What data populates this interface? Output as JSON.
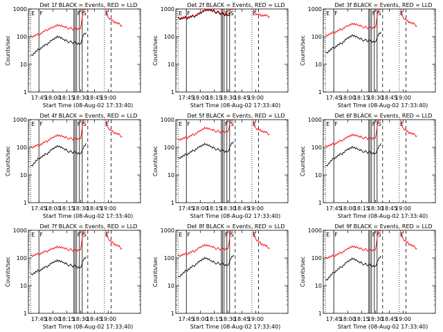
{
  "ylabel": "Counts/sec",
  "xlabel": "Start Time (08-Aug-02 17:33:40)",
  "time_ticks": [
    "17:45",
    "18:00",
    "18:15",
    "18:30",
    "18:45",
    "19:00"
  ],
  "y_ticks": [
    "1",
    "10",
    "100",
    "1000"
  ],
  "markers": [
    {
      "label": "E",
      "style": "dotted",
      "t": 17.6
    },
    {
      "label": "F",
      "style": "solid",
      "t": 17.75
    },
    {
      "label": "F",
      "style": "solid",
      "t": 18.43
    },
    {
      "label": "S",
      "style": "solid",
      "t": 18.53
    },
    {
      "label": "E",
      "style": "dotted",
      "t": 18.93
    }
  ],
  "colors": {
    "events": "#000000",
    "lld": "#ff0000",
    "axes": "#000000"
  },
  "chart_data": [
    {
      "type": "line",
      "title": "Det 1f BLACK = Events, RED = LLD",
      "xlim": [
        17.56,
        19.58
      ],
      "ylim": [
        1,
        1000
      ],
      "yscale": "log",
      "series": [
        {
          "name": "BLACK = Events",
          "x": [
            17.6,
            17.75,
            17.9,
            18.0,
            18.1,
            18.2,
            18.3,
            18.4,
            18.5,
            18.55,
            18.6
          ],
          "y": [
            20,
            35,
            55,
            80,
            100,
            75,
            65,
            60,
            55,
            120,
            140
          ]
        },
        {
          "name": "RED = LLD",
          "x": [
            17.6,
            17.75,
            17.9,
            18.0,
            18.1,
            18.2,
            18.3,
            18.4,
            18.5,
            18.55,
            18.6,
            18.95,
            19.0,
            19.1,
            19.25
          ],
          "y": [
            100,
            120,
            180,
            220,
            260,
            220,
            200,
            190,
            200,
            1000,
            1000,
            1000,
            500,
            350,
            250
          ]
        }
      ]
    },
    {
      "type": "line",
      "title": "Det 2f BLACK = Events, RED = LLD",
      "xlim": [
        17.56,
        19.58
      ],
      "ylim": [
        1,
        1000
      ],
      "yscale": "log",
      "series": [
        {
          "name": "BLACK = Events",
          "x": [
            17.6,
            17.75,
            17.9,
            18.0,
            18.1,
            18.2,
            18.3,
            18.4,
            18.5,
            18.55
          ],
          "y": [
            450,
            470,
            550,
            700,
            900,
            850,
            750,
            650,
            600,
            700
          ]
        },
        {
          "name": "RED = LLD",
          "x": [
            17.6,
            17.75,
            17.9,
            18.0,
            18.1,
            18.2,
            18.3,
            18.4,
            18.5,
            18.55,
            18.6,
            18.95,
            19.0,
            19.1,
            19.25
          ],
          "y": [
            480,
            500,
            580,
            750,
            950,
            900,
            800,
            700,
            650,
            1000,
            1000,
            1000,
            700,
            600,
            550
          ]
        }
      ]
    },
    {
      "type": "line",
      "title": "Det 3f BLACK = Events, RED = LLD",
      "xlim": [
        17.56,
        19.58
      ],
      "ylim": [
        1,
        1000
      ],
      "yscale": "log",
      "series": [
        {
          "name": "BLACK = Events",
          "x": [
            17.6,
            17.75,
            17.9,
            18.0,
            18.1,
            18.2,
            18.3,
            18.4,
            18.5,
            18.55,
            18.6
          ],
          "y": [
            25,
            40,
            60,
            90,
            110,
            85,
            75,
            70,
            65,
            120,
            150
          ]
        },
        {
          "name": "RED = LLD",
          "x": [
            17.6,
            17.75,
            17.9,
            18.0,
            18.1,
            18.2,
            18.3,
            18.4,
            18.5,
            18.55,
            18.6,
            18.95,
            19.0,
            19.1,
            19.25
          ],
          "y": [
            110,
            140,
            190,
            250,
            290,
            250,
            220,
            210,
            220,
            1000,
            1000,
            1000,
            500,
            350,
            250
          ]
        }
      ]
    },
    {
      "type": "line",
      "title": "Det 4f BLACK = Events, RED = LLD",
      "xlim": [
        17.56,
        19.58
      ],
      "ylim": [
        1,
        1000
      ],
      "yscale": "log",
      "series": [
        {
          "name": "BLACK = Events",
          "x": [
            17.6,
            17.75,
            17.9,
            18.0,
            18.1,
            18.2,
            18.3,
            18.4,
            18.5,
            18.55,
            18.6
          ],
          "y": [
            20,
            40,
            60,
            90,
            110,
            85,
            70,
            65,
            60,
            100,
            140
          ]
        },
        {
          "name": "RED = LLD",
          "x": [
            17.6,
            17.75,
            17.9,
            18.0,
            18.1,
            18.2,
            18.3,
            18.4,
            18.5,
            18.55,
            18.6,
            18.95,
            19.0,
            19.1,
            19.25
          ],
          "y": [
            100,
            120,
            170,
            230,
            270,
            230,
            210,
            200,
            210,
            1000,
            1000,
            1000,
            500,
            350,
            250
          ]
        }
      ]
    },
    {
      "type": "line",
      "title": "Det 5f BLACK = Events, RED = LLD",
      "xlim": [
        17.56,
        19.58
      ],
      "ylim": [
        1,
        1000
      ],
      "yscale": "log",
      "series": [
        {
          "name": "BLACK = Events",
          "x": [
            17.6,
            17.75,
            17.9,
            18.0,
            18.1,
            18.2,
            18.3,
            18.4,
            18.5,
            18.55,
            18.6
          ],
          "y": [
            40,
            55,
            80,
            110,
            130,
            100,
            85,
            75,
            70,
            130,
            160
          ]
        },
        {
          "name": "RED = LLD",
          "x": [
            17.6,
            17.75,
            17.9,
            18.0,
            18.1,
            18.2,
            18.3,
            18.4,
            18.5,
            18.55,
            18.6,
            18.95,
            19.0,
            19.1,
            19.25
          ],
          "y": [
            190,
            220,
            300,
            400,
            500,
            420,
            380,
            360,
            380,
            1000,
            1000,
            1000,
            500,
            400,
            300
          ]
        }
      ]
    },
    {
      "type": "line",
      "title": "Det 6f BLACK = Events, RED = LLD",
      "xlim": [
        17.56,
        19.58
      ],
      "ylim": [
        1,
        1000
      ],
      "yscale": "log",
      "series": [
        {
          "name": "BLACK = Events",
          "x": [
            17.6,
            17.75,
            17.9,
            18.0,
            18.1,
            18.2,
            18.3,
            18.4,
            18.5,
            18.55,
            18.6
          ],
          "y": [
            20,
            40,
            60,
            85,
            100,
            80,
            70,
            65,
            60,
            100,
            140
          ]
        },
        {
          "name": "RED = LLD",
          "x": [
            17.6,
            17.75,
            17.9,
            18.0,
            18.1,
            18.2,
            18.3,
            18.4,
            18.5,
            18.55,
            18.6,
            18.95,
            19.0,
            19.1,
            19.25
          ],
          "y": [
            110,
            130,
            180,
            240,
            280,
            240,
            220,
            210,
            220,
            1000,
            1000,
            1000,
            500,
            350,
            260
          ]
        }
      ]
    },
    {
      "type": "line",
      "title": "Det 7f BLACK = Events, RED = LLD",
      "xlim": [
        17.56,
        19.58
      ],
      "ylim": [
        1,
        1000
      ],
      "yscale": "log",
      "series": [
        {
          "name": "BLACK = Events",
          "x": [
            17.6,
            17.75,
            17.9,
            18.0,
            18.1,
            18.2,
            18.3,
            18.4,
            18.5,
            18.55,
            18.6
          ],
          "y": [
            25,
            35,
            50,
            70,
            80,
            65,
            55,
            50,
            45,
            90,
            110
          ]
        },
        {
          "name": "RED = LLD",
          "x": [
            17.6,
            17.75,
            17.9,
            18.0,
            18.1,
            18.2,
            18.3,
            18.4,
            18.5,
            18.55,
            18.6,
            18.95,
            19.0,
            19.1,
            19.25
          ],
          "y": [
            120,
            140,
            180,
            220,
            250,
            220,
            200,
            190,
            200,
            1000,
            1000,
            1000,
            500,
            330,
            220
          ]
        }
      ]
    },
    {
      "type": "line",
      "title": "Det 8f BLACK = Events, RED = LLD",
      "xlim": [
        17.56,
        19.58
      ],
      "ylim": [
        1,
        1000
      ],
      "yscale": "log",
      "series": [
        {
          "name": "BLACK = Events",
          "x": [
            17.6,
            17.75,
            17.9,
            18.0,
            18.1,
            18.2,
            18.3,
            18.4,
            18.5,
            18.55,
            18.6
          ],
          "y": [
            20,
            35,
            55,
            80,
            100,
            75,
            65,
            60,
            55,
            100,
            130
          ]
        },
        {
          "name": "RED = LLD",
          "x": [
            17.6,
            17.75,
            17.9,
            18.0,
            18.1,
            18.2,
            18.3,
            18.4,
            18.5,
            18.55,
            18.6,
            18.95,
            19.0,
            19.1,
            19.25
          ],
          "y": [
            120,
            140,
            180,
            250,
            290,
            250,
            220,
            210,
            220,
            1000,
            1000,
            1000,
            500,
            330,
            230
          ]
        }
      ]
    },
    {
      "type": "line",
      "title": "Det 9f BLACK = Events, RED = LLD",
      "xlim": [
        17.56,
        19.58
      ],
      "ylim": [
        1,
        1000
      ],
      "yscale": "log",
      "series": [
        {
          "name": "BLACK = Events",
          "x": [
            17.6,
            17.75,
            17.9,
            18.0,
            18.1,
            18.2,
            18.3,
            18.4,
            18.5,
            18.55,
            18.6
          ],
          "y": [
            15,
            30,
            50,
            75,
            95,
            70,
            60,
            55,
            50,
            90,
            120
          ]
        },
        {
          "name": "RED = LLD",
          "x": [
            17.6,
            17.75,
            17.9,
            18.0,
            18.1,
            18.2,
            18.3,
            18.4,
            18.5,
            18.55,
            18.6,
            18.95,
            19.0,
            19.1,
            19.25
          ],
          "y": [
            100,
            120,
            160,
            220,
            260,
            220,
            200,
            190,
            200,
            1000,
            1000,
            1000,
            500,
            330,
            220
          ]
        }
      ]
    }
  ]
}
